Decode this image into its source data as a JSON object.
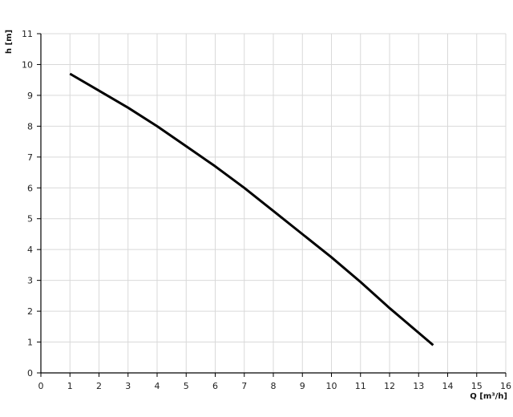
{
  "chart_data": {
    "type": "line",
    "title": "",
    "xlabel": "Q [m³/h]",
    "ylabel": "h [m]",
    "xlim": [
      0,
      16
    ],
    "ylim": [
      0,
      11
    ],
    "xticks": [
      "0",
      "1",
      "2",
      "3",
      "4",
      "5",
      "6",
      "7",
      "8",
      "9",
      "10",
      "11",
      "12",
      "13",
      "14",
      "15",
      "16"
    ],
    "yticks": [
      "0",
      "1",
      "2",
      "3",
      "4",
      "5",
      "6",
      "7",
      "8",
      "9",
      "10",
      "11"
    ],
    "grid": true,
    "line_color": "#000000",
    "grid_color": "#d9d9d9",
    "series": [
      {
        "x": [
          1,
          2,
          3,
          4,
          5,
          6,
          7,
          8,
          9,
          10,
          11,
          12,
          13,
          13.5
        ],
        "y": [
          9.7,
          9.15,
          8.6,
          8.0,
          7.35,
          6.7,
          6.0,
          5.25,
          4.5,
          3.75,
          2.95,
          2.1,
          1.3,
          0.9
        ]
      }
    ]
  }
}
